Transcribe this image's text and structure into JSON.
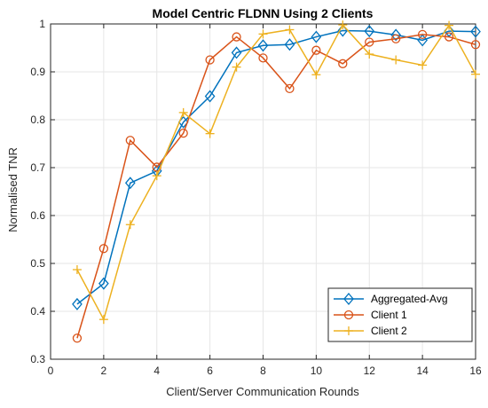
{
  "chart_data": {
    "type": "line",
    "title": "Model Centric FLDNN Using 2 Clients",
    "xlabel": "Client/Server Communication Rounds",
    "ylabel": "Normalised TNR",
    "xlim": [
      0,
      16
    ],
    "ylim": [
      0.3,
      1.0
    ],
    "xticks": [
      0,
      2,
      4,
      6,
      8,
      10,
      12,
      14,
      16
    ],
    "yticks": [
      0.3,
      0.4,
      0.5,
      0.6,
      0.7,
      0.8,
      0.9,
      1.0
    ],
    "xtick_labels": [
      "0",
      "2",
      "4",
      "6",
      "8",
      "10",
      "12",
      "14",
      "16"
    ],
    "ytick_labels": [
      "0.3",
      "0.4",
      "0.5",
      "0.6",
      "0.7",
      "0.8",
      "0.9",
      "1"
    ],
    "grid": true,
    "legend_position": "bottom-right",
    "x": [
      1,
      2,
      3,
      4,
      5,
      6,
      7,
      8,
      9,
      10,
      11,
      12,
      13,
      14,
      15,
      16
    ],
    "series": [
      {
        "name": "Aggregated-Avg",
        "color": "#0072BD",
        "marker": "diamond",
        "values": [
          0.415,
          0.458,
          0.668,
          0.693,
          0.795,
          0.849,
          0.94,
          0.955,
          0.957,
          0.973,
          0.986,
          0.985,
          0.977,
          0.966,
          0.985,
          0.984
        ]
      },
      {
        "name": "Client 1",
        "color": "#D95319",
        "marker": "circle",
        "values": [
          0.344,
          0.531,
          0.757,
          0.701,
          0.772,
          0.925,
          0.973,
          0.929,
          0.865,
          0.945,
          0.917,
          0.962,
          0.969,
          0.978,
          0.973,
          0.957
        ]
      },
      {
        "name": "Client 2",
        "color": "#EDB120",
        "marker": "plus",
        "values": [
          0.487,
          0.383,
          0.581,
          0.683,
          0.815,
          0.771,
          0.91,
          0.979,
          0.988,
          0.894,
          0.998,
          0.937,
          0.925,
          0.914,
          0.997,
          0.895
        ]
      }
    ]
  }
}
